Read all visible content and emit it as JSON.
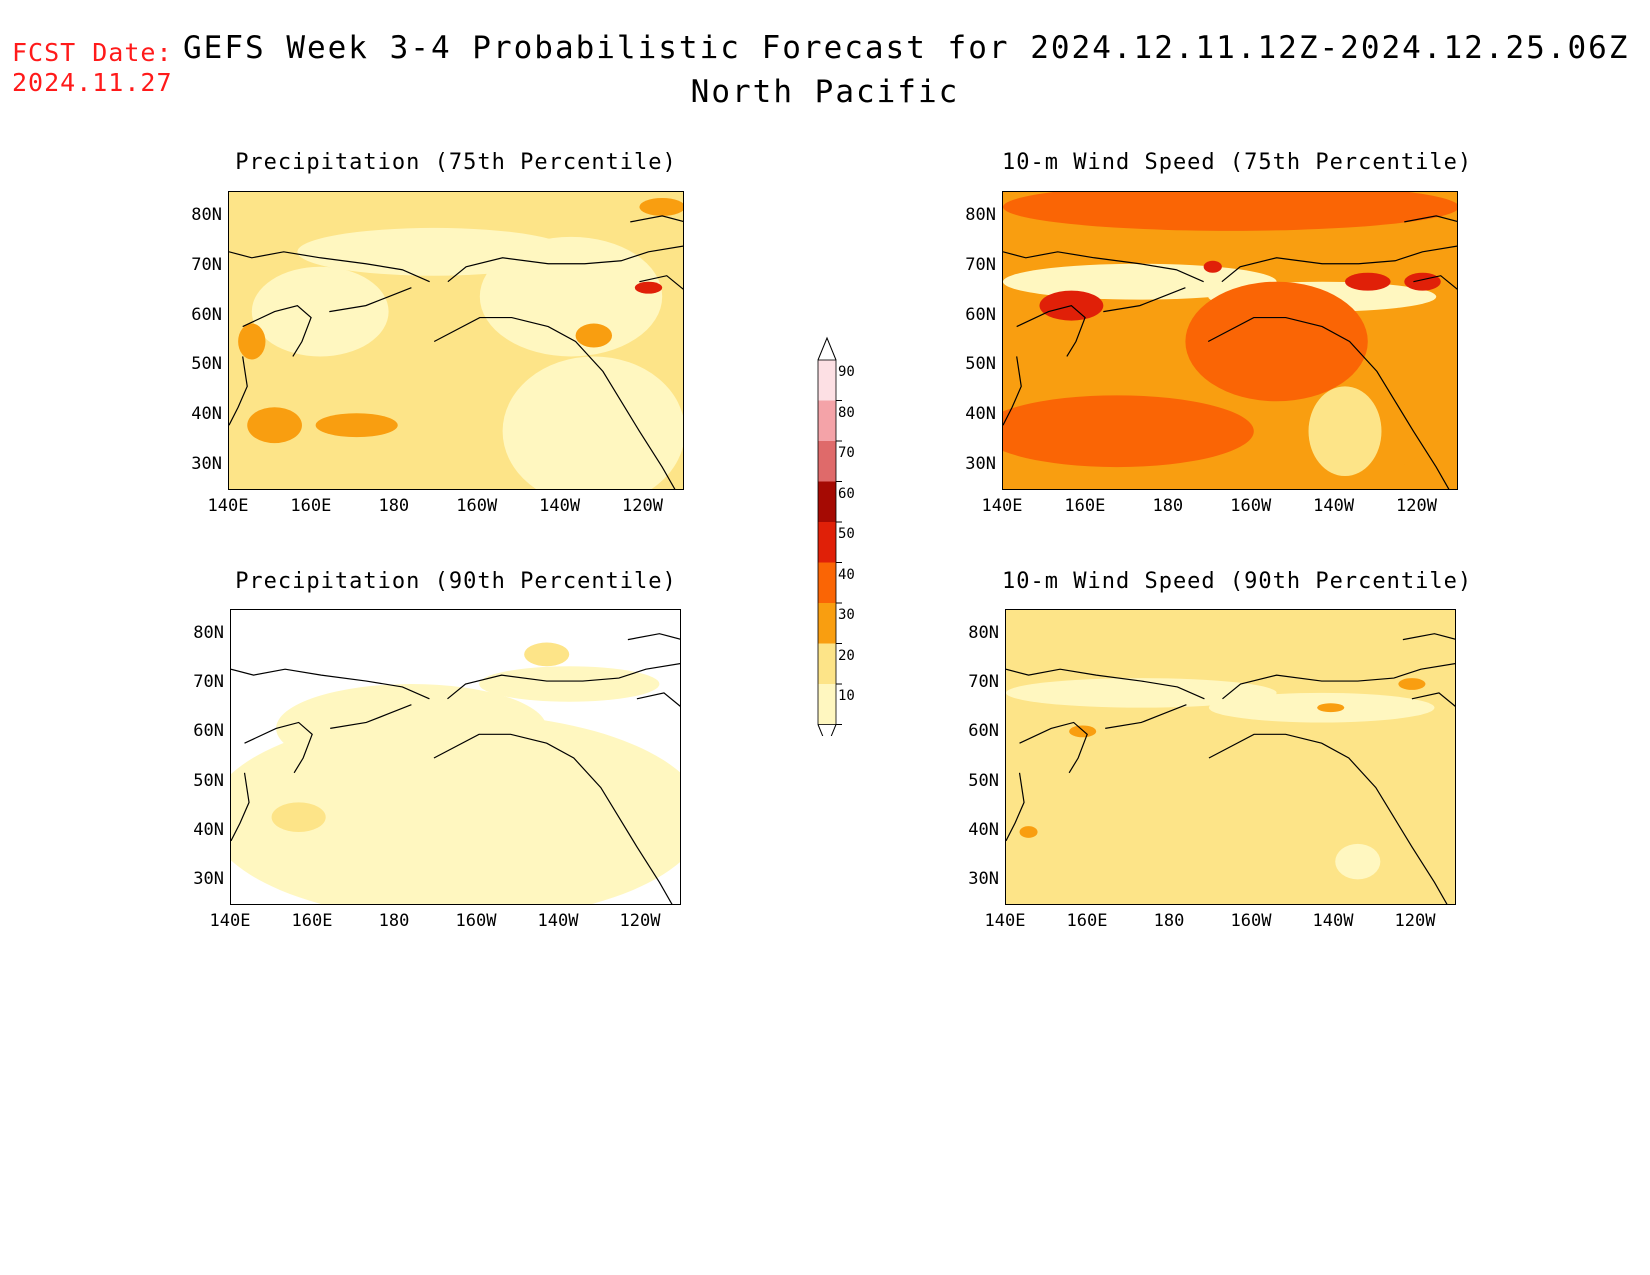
{
  "header": {
    "fcst_date_label": "FCST Date:",
    "fcst_date_value": "2024.11.27",
    "title": "GEFS Week 3-4 Probabilistic Forecast for 2024.12.11.12Z-2024.12.25.06Z",
    "subtitle": "North Pacific"
  },
  "panels": [
    {
      "id": "precip75",
      "title": "Precipitation (75th Percentile)",
      "base": "#fde488"
    },
    {
      "id": "wind75",
      "title": "10-m Wind Speed (75th Percentile)",
      "base": "#f99e10"
    },
    {
      "id": "precip90",
      "title": "Precipitation (90th Percentile)",
      "base": "#fff7c0"
    },
    {
      "id": "wind90",
      "title": "10-m Wind Speed (90th Percentile)",
      "base": "#fde488"
    }
  ],
  "lat_ticks": [
    "80N",
    "70N",
    "60N",
    "50N",
    "40N",
    "30N"
  ],
  "lon_ticks": [
    "140E",
    "160E",
    "180",
    "160W",
    "140W",
    "120W"
  ],
  "colorbar": {
    "levels": [
      "10",
      "20",
      "30",
      "40",
      "50",
      "60",
      "70",
      "80",
      "90"
    ],
    "colors": [
      "#fff7c0",
      "#fde488",
      "#f99e10",
      "#fa6505",
      "#e02008",
      "#a50a03",
      "#df6a6a",
      "#f4a3a8",
      "#fde0e4"
    ]
  },
  "map_data": {
    "extent": {
      "lon_min": 140,
      "lon_max": 250,
      "lat_min": 25,
      "lat_max": 85
    },
    "layers": [
      "filled-probability-contours",
      "coastlines"
    ]
  }
}
